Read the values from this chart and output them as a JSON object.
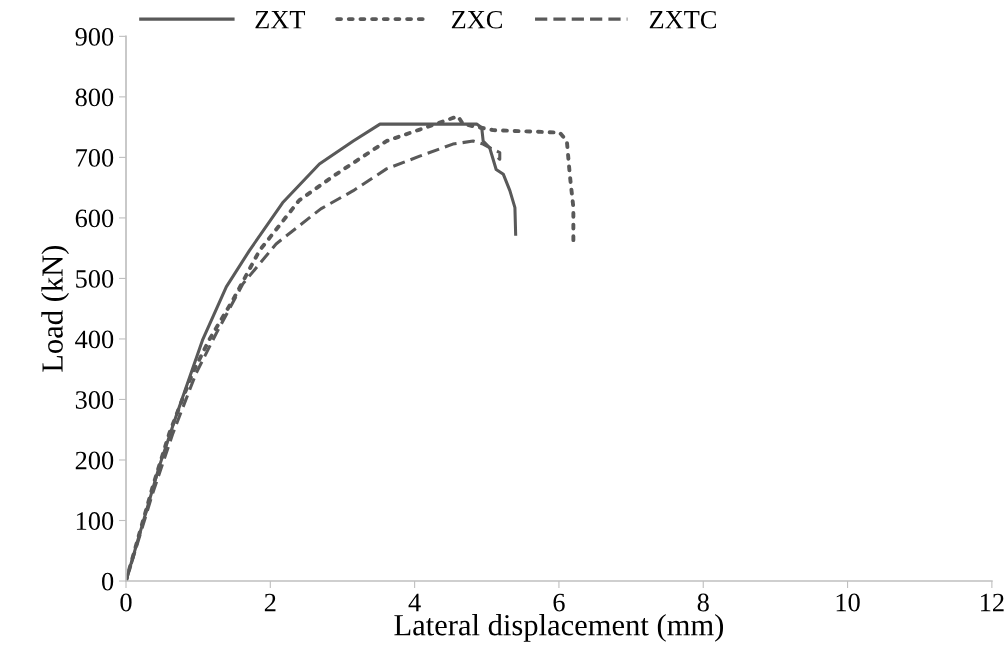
{
  "chart_data": {
    "type": "line",
    "xlabel": "Lateral displacement (mm)",
    "ylabel": "Load (kN)",
    "xlim": [
      0,
      12
    ],
    "xticks": [
      0,
      2,
      4,
      6,
      8,
      10,
      12
    ],
    "ylim": [
      0,
      900
    ],
    "yticks": [
      0,
      100,
      200,
      300,
      400,
      500,
      600,
      700,
      800,
      900
    ],
    "grid": false,
    "legend": "top",
    "marker": "none",
    "series": [
      {
        "name": "ZXT",
        "color": "#595959",
        "line_style": "solid",
        "x": [
          0,
          0.46,
          0.69,
          1.06,
          1.39,
          1.71,
          2.17,
          2.68,
          3.15,
          3.52,
          4.86,
          4.93,
          4.95,
          5.04,
          5.13,
          5.23,
          5.32,
          5.39,
          5.4
        ],
        "values": [
          0,
          189,
          271,
          398,
          486,
          546,
          625,
          689,
          727,
          755,
          755,
          749,
          727,
          716,
          680,
          672,
          645,
          617,
          573
        ]
      },
      {
        "name": "ZXC",
        "color": "#595959",
        "line_style": "dotted",
        "x": [
          0,
          0.37,
          0.6,
          0.92,
          1.15,
          1.48,
          1.85,
          2.4,
          2.91,
          3.61,
          4.07,
          4.6,
          4.67,
          5.09,
          6.01,
          6.11,
          6.15,
          6.2,
          6.2
        ],
        "values": [
          0,
          156,
          244,
          343,
          398,
          464,
          546,
          629,
          672,
          727,
          746,
          768,
          755,
          745,
          741,
          727,
          672,
          617,
          563
        ]
      },
      {
        "name": "ZXTC",
        "color": "#595959",
        "line_style": "dashed",
        "x": [
          0,
          0.37,
          0.65,
          0.97,
          1.25,
          1.62,
          2.08,
          2.7,
          3.15,
          3.61,
          4.07,
          4.53,
          4.81,
          4.95,
          5.09,
          5.18,
          5.18,
          5.13
        ],
        "values": [
          0,
          145,
          244,
          343,
          409,
          491,
          557,
          615,
          645,
          681,
          702,
          722,
          727,
          722,
          713,
          708,
          697,
          702
        ]
      }
    ]
  }
}
